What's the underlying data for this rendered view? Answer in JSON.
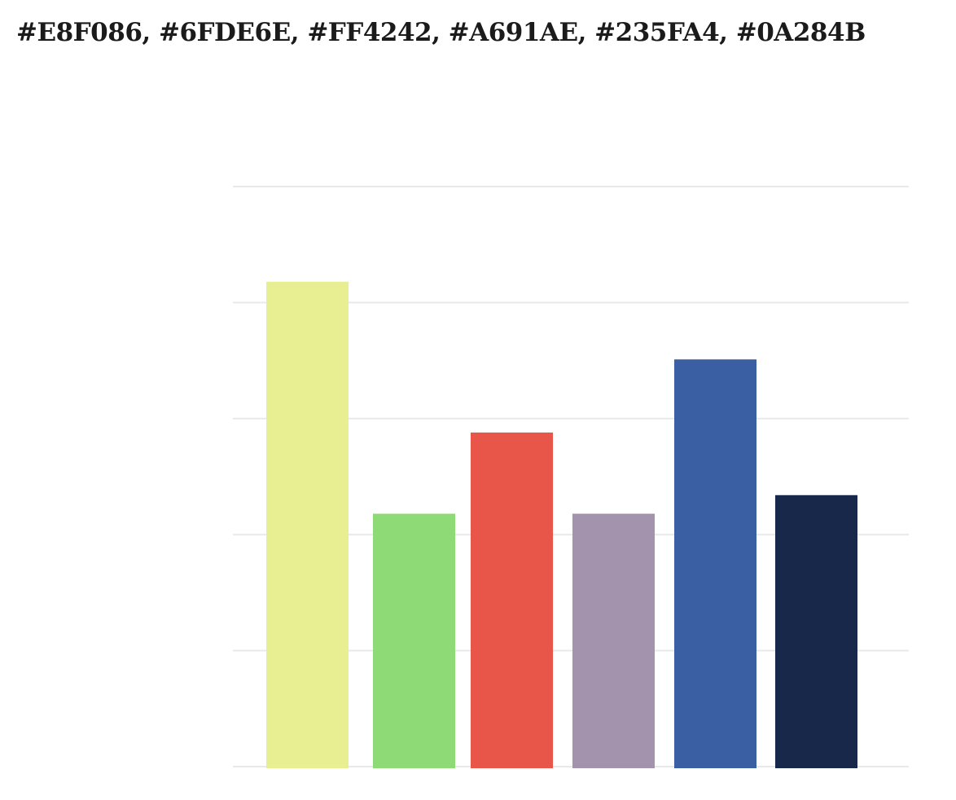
{
  "heading": "#E8F086, #6FDE6E, #FF4242, #A691AE, #235FA4, #0A284B",
  "chart_data": {
    "type": "bar",
    "title": "",
    "xlabel": "",
    "ylabel": "",
    "categories": [
      "",
      "",
      "",
      "",
      "",
      ""
    ],
    "values": [
      4.18,
      2.18,
      2.88,
      2.18,
      3.51,
      2.34
    ],
    "colors": [
      "#E8EF92",
      "#8DDA76",
      "#E8564A",
      "#A393AC",
      "#3A60A3",
      "#17284A"
    ],
    "ylim": [
      0,
      5
    ],
    "grid": true,
    "gridline_count": 6,
    "legend": "none"
  }
}
